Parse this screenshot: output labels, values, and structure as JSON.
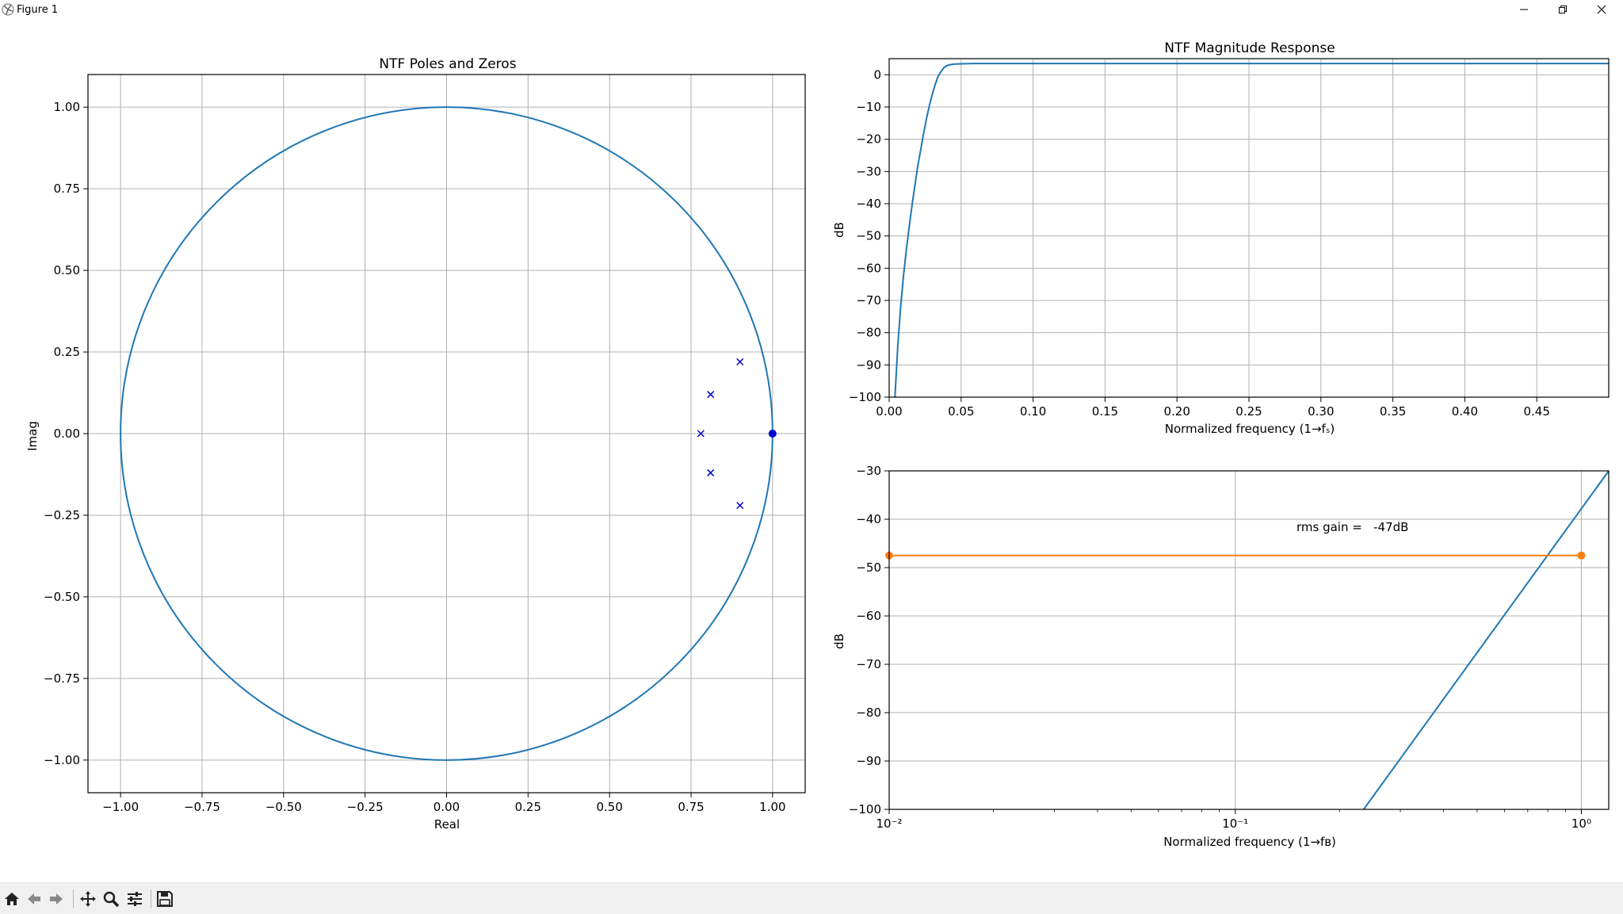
{
  "window": {
    "title": "Figure 1",
    "buttons": {
      "minimize": "minimize-icon",
      "restore": "restore-icon",
      "close": "close-icon"
    }
  },
  "toolbar": {
    "buttons": [
      "home-icon",
      "back-icon",
      "forward-icon",
      "pan-icon",
      "zoom-icon",
      "configure-subplots-icon",
      "save-icon"
    ]
  },
  "colors": {
    "line": "#1f77b4",
    "orange": "#ff7f0e",
    "marker_blue": "#0000cc",
    "grid": "#b0b0b0"
  },
  "chart_data": [
    {
      "type": "scatter",
      "title": "NTF Poles and Zeros",
      "xlabel": "Real",
      "ylabel": "Imag",
      "xlim": [
        -1.1,
        1.1
      ],
      "ylim": [
        -1.1,
        1.1
      ],
      "xticks": [
        -1.0,
        -0.75,
        -0.5,
        -0.25,
        0.0,
        0.25,
        0.5,
        0.75,
        1.0
      ],
      "xtick_labels": [
        "−1.00",
        "−0.75",
        "−0.50",
        "−0.25",
        "0.00",
        "0.25",
        "0.50",
        "0.75",
        "1.00"
      ],
      "yticks": [
        1.0,
        0.75,
        0.5,
        0.25,
        0.0,
        -0.25,
        -0.5,
        -0.75,
        -1.0
      ],
      "ytick_labels": [
        "1.00",
        "0.75",
        "0.50",
        "0.25",
        "0.00",
        "−0.25",
        "−0.50",
        "−0.75",
        "−1.00"
      ],
      "grid": true,
      "unit_circle": {
        "radius": 1.0,
        "center": [
          0,
          0
        ]
      },
      "zeros": [
        [
          1.0,
          0.0
        ]
      ],
      "poles": [
        [
          0.9,
          0.22
        ],
        [
          0.81,
          0.12
        ],
        [
          0.78,
          0.0
        ],
        [
          0.81,
          -0.12
        ],
        [
          0.9,
          -0.22
        ]
      ]
    },
    {
      "type": "line",
      "title": "NTF Magnitude Response",
      "xlabel": "Normalized frequency (1→fₛ)",
      "ylabel": "dB",
      "xlim": [
        0.0,
        0.5
      ],
      "ylim": [
        -100,
        5
      ],
      "xticks": [
        0.0,
        0.05,
        0.1,
        0.15,
        0.2,
        0.25,
        0.3,
        0.35,
        0.4,
        0.45
      ],
      "xtick_labels": [
        "0.00",
        "0.05",
        "0.10",
        "0.15",
        "0.20",
        "0.25",
        "0.30",
        "0.35",
        "0.40",
        "0.45"
      ],
      "yticks": [
        0,
        -10,
        -20,
        -30,
        -40,
        -50,
        -60,
        -70,
        -80,
        -90,
        -100
      ],
      "ytick_labels": [
        "0",
        "−10",
        "−20",
        "−30",
        "−40",
        "−50",
        "−60",
        "−70",
        "−80",
        "−90",
        "−100"
      ],
      "grid": true,
      "series": [
        {
          "x": [
            0.004,
            0.006,
            0.008,
            0.01,
            0.012,
            0.014,
            0.016,
            0.018,
            0.02,
            0.022,
            0.024,
            0.026,
            0.028,
            0.03,
            0.032,
            0.034,
            0.036,
            0.038,
            0.04,
            0.042,
            0.045,
            0.05,
            0.055,
            0.06,
            0.08,
            0.1,
            0.2,
            0.3,
            0.4,
            0.5
          ],
          "y": [
            -100,
            -84,
            -72,
            -62,
            -54,
            -47,
            -40,
            -34,
            -28,
            -23,
            -18,
            -13.5,
            -9.5,
            -6,
            -3,
            -0.5,
            1,
            2.2,
            2.8,
            3.1,
            3.3,
            3.4,
            3.45,
            3.5,
            3.5,
            3.5,
            3.5,
            3.5,
            3.5,
            3.5
          ]
        }
      ]
    },
    {
      "type": "line",
      "title": "",
      "xlabel": "Normalized frequency (1→fʙ)",
      "ylabel": "dB",
      "xscale": "log",
      "xlim": [
        0.01,
        1.2
      ],
      "ylim": [
        -100,
        -30
      ],
      "xtick_labels": [
        "10⁻²",
        "10⁻¹",
        "10⁰"
      ],
      "yticks": [
        -30,
        -40,
        -50,
        -60,
        -70,
        -80,
        -90,
        -100
      ],
      "ytick_labels": [
        "−30",
        "−40",
        "−50",
        "−60",
        "−70",
        "−80",
        "−90",
        "−100"
      ],
      "grid": true,
      "annotation": "rms gain =   -47dB",
      "series": [
        {
          "x": [
            0.235,
            1.2
          ],
          "y": [
            -100,
            -30
          ]
        },
        {
          "x": [
            0.01,
            1.0
          ],
          "y": [
            -47.5,
            -47.5
          ]
        }
      ]
    }
  ]
}
